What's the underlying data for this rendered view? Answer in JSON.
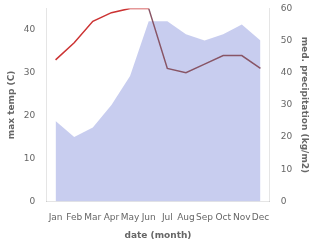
{
  "chart_data": {
    "type": "line",
    "categories": [
      "Jan",
      "Feb",
      "Mar",
      "Apr",
      "May",
      "Jun",
      "Jul",
      "Aug",
      "Sep",
      "Oct",
      "Nov",
      "Dec"
    ],
    "xlabel": "date (month)",
    "ylabel": "max temp (C)",
    "y2label": "med. precipitation (kg/m2)",
    "ylim": [
      0,
      45
    ],
    "yticks": [
      0,
      10,
      20,
      30,
      40
    ],
    "y2lim": [
      0,
      60
    ],
    "y2ticks": [
      0,
      10,
      20,
      30,
      40,
      50,
      60
    ],
    "grid": false,
    "series": [
      {
        "type": "area",
        "axis": "y2",
        "color": "#b0b8e8",
        "values": [
          25,
          20,
          23,
          30,
          39,
          56,
          56,
          52,
          50,
          52,
          55,
          50
        ]
      },
      {
        "type": "line",
        "color": "#cc3333",
        "values": [
          33,
          37,
          42,
          44,
          45,
          45,
          null,
          null,
          null,
          null,
          null,
          null
        ]
      },
      {
        "type": "line",
        "color": "#885566",
        "values": [
          null,
          null,
          null,
          null,
          null,
          45,
          31,
          30,
          32,
          34,
          34,
          31
        ]
      }
    ]
  }
}
